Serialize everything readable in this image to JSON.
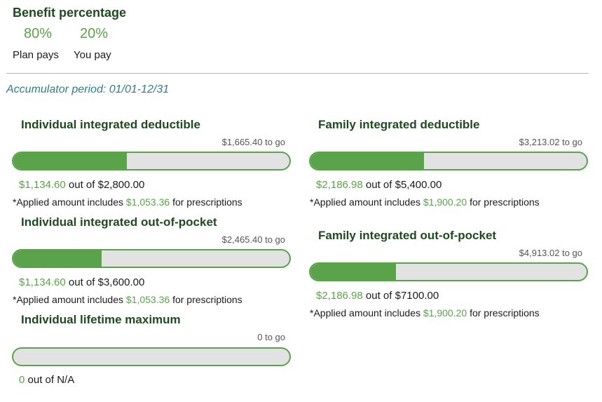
{
  "benefit": {
    "title": "Benefit percentage",
    "plan_pct": "80%",
    "you_pct": "20%",
    "plan_label": "Plan pays",
    "you_label": "You pay"
  },
  "period": "Accumulator period: 01/01-12/31",
  "labels": {
    "out_of": "out of",
    "applied_prefix": "*Applied amount includes",
    "applied_suffix": "for prescriptions"
  },
  "sections": {
    "ind_deductible": {
      "title": "Individual integrated deductible",
      "to_go": "$1,665.40 to go",
      "applied": "$1,134.60",
      "total": "$2,800.00",
      "rx": "$1,053.36",
      "progress": 0.41
    },
    "ind_oop": {
      "title": "Individual integrated out-of-pocket",
      "to_go": "$2,465.40 to go",
      "applied": "$1,134.60",
      "total": "$3,600.00",
      "rx": "$1,053.36",
      "progress": 0.32
    },
    "ind_lifetime": {
      "title": "Individual lifetime maximum",
      "to_go": "0 to go",
      "applied": "0",
      "total": "N/A",
      "progress": 0
    },
    "fam_deductible": {
      "title": "Family integrated deductible",
      "to_go": "$3,213.02 to go",
      "applied": "$2,186.98",
      "total": "$5,400.00",
      "rx": "$1,900.20",
      "progress": 0.41
    },
    "fam_oop": {
      "title": "Family integrated out-of-pocket",
      "to_go": "$4,913.02 to go",
      "applied": "$2,186.98",
      "total": "$7100.00",
      "rx": "$1,900.20",
      "progress": 0.31
    }
  },
  "colors": {
    "accent": "#5aa34a",
    "title": "#1f4a1f",
    "period": "#2a7f8a",
    "bar_track": "#e2e2e2"
  }
}
